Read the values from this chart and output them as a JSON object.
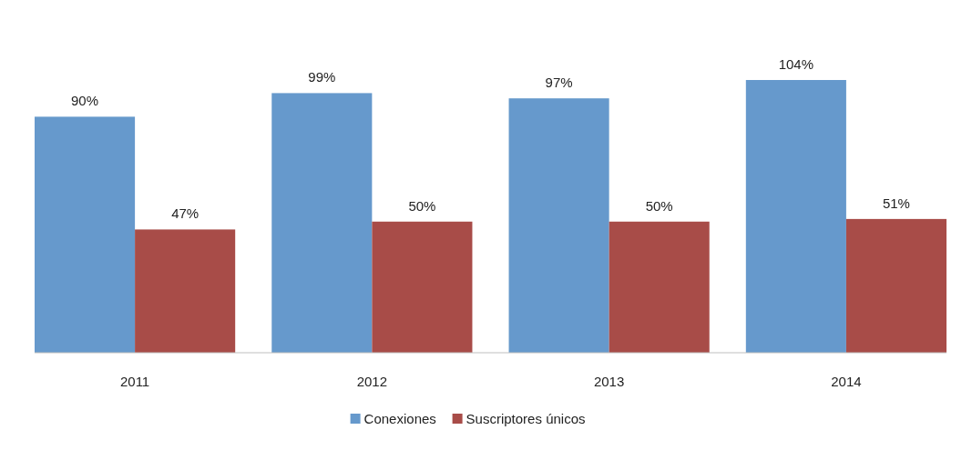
{
  "chart_data": {
    "type": "bar",
    "categories": [
      "2011",
      "2012",
      "2013",
      "2014"
    ],
    "series": [
      {
        "name": "Conexiones",
        "color": "#6699cc",
        "values": [
          90,
          99,
          97,
          104
        ],
        "value_labels": [
          "90%",
          "99%",
          "97%",
          "104%"
        ]
      },
      {
        "name": "Suscriptores únicos",
        "color": "#a84c48",
        "values": [
          47,
          50,
          50,
          51
        ],
        "value_labels": [
          "47%",
          "50%",
          "50%",
          "51%"
        ]
      }
    ],
    "legend": "bottom"
  }
}
